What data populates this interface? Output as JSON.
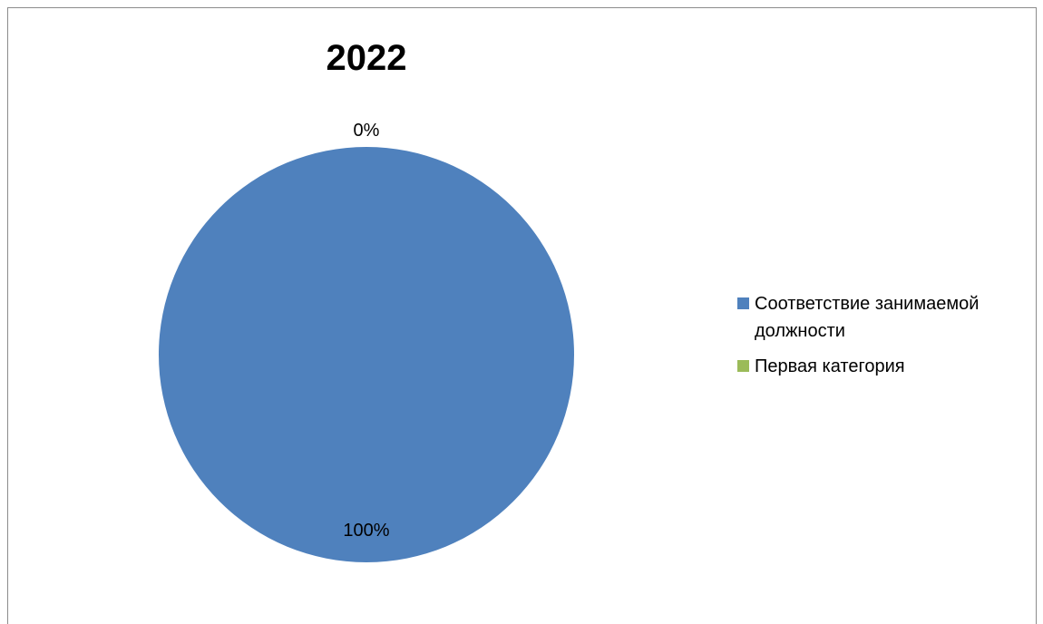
{
  "chart_data": {
    "type": "pie",
    "title": "2022",
    "categories": [
      "Соответствие занимаемой должности",
      "Первая категория"
    ],
    "values": [
      100,
      0
    ],
    "labels": [
      "100%",
      "0%"
    ],
    "colors": [
      "#4f81bd",
      "#9bbb59"
    ],
    "legend_position": "right"
  }
}
